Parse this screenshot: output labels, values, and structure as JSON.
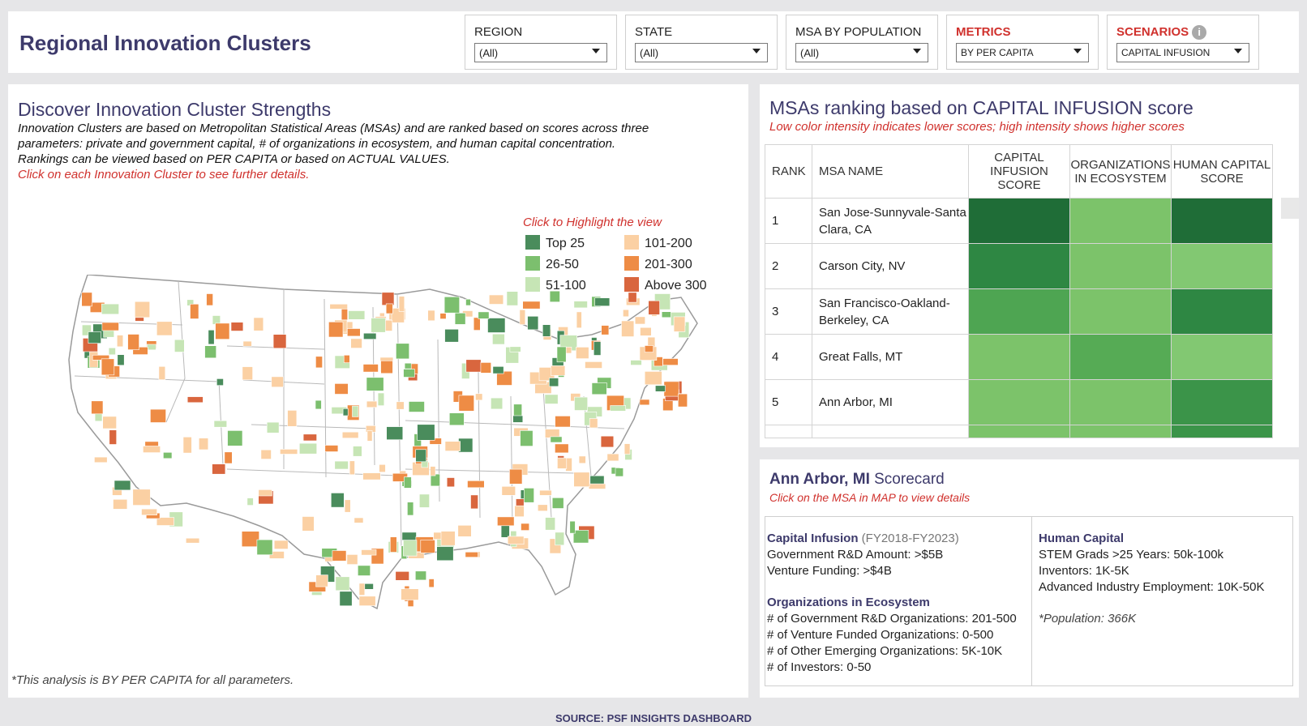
{
  "header": {
    "title": "Regional Innovation Clusters",
    "filters": [
      {
        "label": "REGION",
        "value": "(All)",
        "accent": false
      },
      {
        "label": "STATE",
        "value": "(All)",
        "accent": false
      },
      {
        "label": "MSA BY POPULATION",
        "value": "(All)",
        "accent": false
      },
      {
        "label": "METRICS",
        "value": "BY PER CAPITA",
        "accent": true
      },
      {
        "label": "SCENARIOS",
        "value": "CAPITAL INFUSION",
        "accent": true
      }
    ]
  },
  "map_panel": {
    "title": "Discover Innovation Cluster Strengths",
    "desc_lines": [
      "Innovation Clusters are based on Metropolitan Statistical Areas (MSAs) and are ranked based on scores across three",
      "parameters: private and government capital, # of organizations in ecosystem, and human capital concentration.",
      "Rankings can be viewed based on PER CAPITA or based on ACTUAL VALUES."
    ],
    "desc_red": "Click on each Innovation Cluster to see further details.",
    "legend_title": "Click to Highlight the view",
    "legend": [
      {
        "label": "Top 25",
        "color": "#4a8c5c"
      },
      {
        "label": "26-50",
        "color": "#7cbf6e"
      },
      {
        "label": "51-100",
        "color": "#c6e5b5"
      },
      {
        "label": "101-200",
        "color": "#fbd0a3"
      },
      {
        "label": "201-300",
        "color": "#ee8c45"
      },
      {
        "label": "Above 300",
        "color": "#d9663e"
      }
    ],
    "footnote": "*This analysis is BY PER CAPITA for all parameters."
  },
  "ranking": {
    "title": "MSAs ranking based on CAPITAL INFUSION score",
    "subtitle": "Low color intensity indicates lower scores; high intensity shows higher scores",
    "headers": {
      "rank": "RANK",
      "name": "MSA NAME",
      "col1_a": "CAPITAL",
      "col1_b": "INFUSION SCORE",
      "col2_a": "ORGANIZATIONS",
      "col2_b": "IN ECOSYSTEM",
      "col3_a": "HUMAN CAPITAL",
      "col3_b": "SCORE"
    },
    "rows": [
      {
        "rank": "1",
        "name": "San Jose-Sunnyvale-Santa Clara, CA",
        "colors": [
          "#1f6d37",
          "#7cc36a",
          "#1f6d37"
        ]
      },
      {
        "rank": "2",
        "name": "Carson City, NV",
        "colors": [
          "#2e8743",
          "#7cc36a",
          "#82c872"
        ]
      },
      {
        "rank": "3",
        "name": "San Francisco-Oakland-Berkeley, CA",
        "colors": [
          "#4ea552",
          "#7cc36a",
          "#2e8743"
        ]
      },
      {
        "rank": "4",
        "name": "Great Falls, MT",
        "colors": [
          "#7cc36a",
          "#56ab55",
          "#82c872"
        ]
      },
      {
        "rank": "5",
        "name": "Ann Arbor, MI",
        "colors": [
          "#7cc36a",
          "#7cc36a",
          "#3b9449"
        ]
      }
    ],
    "partial_colors": [
      "#7cc36a",
      "#7cc36a",
      "#3b9449"
    ]
  },
  "scorecard": {
    "msa": "Ann Arbor, MI",
    "title_suffix": "Scorecard",
    "subtitle": "Click on the MSA in MAP to view details",
    "capital_head": "Capital Infusion",
    "capital_period": "(FY2018-FY2023)",
    "capital_lines": [
      "Government R&D Amount: >$5B",
      "Venture Funding: >$4B"
    ],
    "org_head": "Organizations in Ecosystem",
    "org_lines": [
      "# of Government R&D Organizations: 201-500",
      "# of Venture Funded Organizations: 0-500",
      "# of Other Emerging Organizations: 5K-10K",
      "# of Investors: 0-50"
    ],
    "human_head": "Human Capital",
    "human_lines": [
      "STEM Grads >25 Years: 50k-100k",
      "Inventors: 1K-5K",
      "Advanced Industry Employment: 10K-50K"
    ],
    "population": "*Population: 366K"
  },
  "source": "SOURCE: PSF INSIGHTS DASHBOARD"
}
